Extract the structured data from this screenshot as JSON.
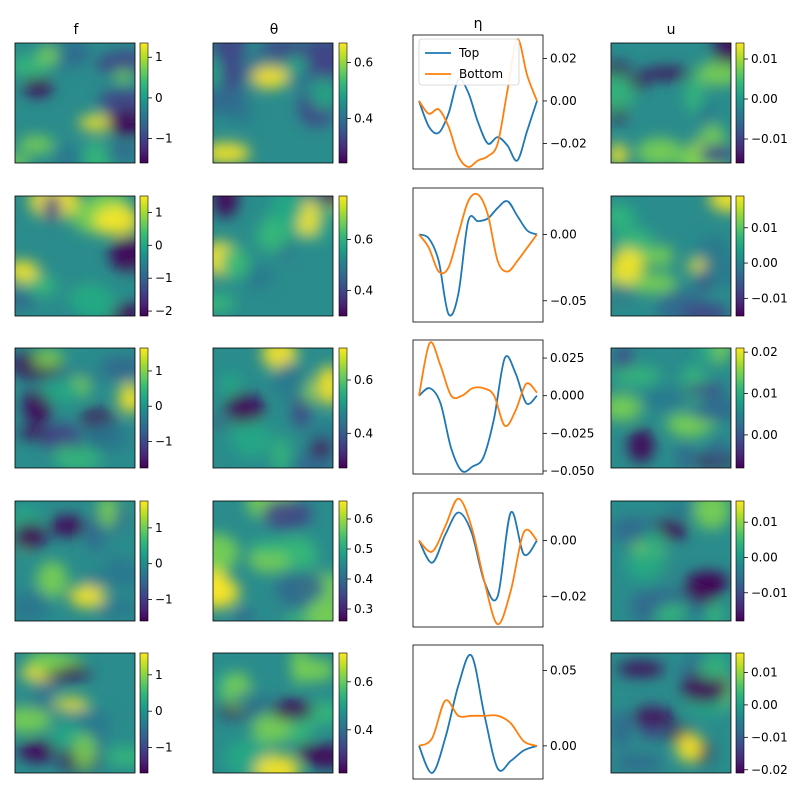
{
  "chart_data": {
    "type": "figure-grid",
    "column_titles": [
      "f",
      "θ",
      "η",
      "u"
    ],
    "legend": [
      "Top",
      "Bottom"
    ],
    "series_colors": {
      "Top": "#1f77b4",
      "Bottom": "#ff7f0e"
    },
    "colormap": "viridis",
    "rows": [
      {
        "f": {
          "clim": [
            -1.6,
            1.35
          ],
          "ticks": [
            1,
            0,
            -1
          ],
          "tick_labels": [
            "1",
            "0",
            "−1"
          ]
        },
        "theta": {
          "clim": [
            0.24,
            0.67
          ],
          "ticks": [
            0.6,
            0.4
          ],
          "tick_labels": [
            "0.6",
            "0.4"
          ]
        },
        "eta": {
          "ylim": [
            -0.032,
            0.031
          ],
          "ticks": [
            0.02,
            0.0,
            -0.02
          ],
          "tick_labels": [
            "0.02",
            "0.00",
            "−0.02"
          ],
          "series": [
            {
              "name": "Top",
              "values": [
                0.0,
                -0.012,
                -0.015,
                -0.006,
                0.01,
                0.004,
                -0.01,
                -0.02,
                -0.017,
                -0.021,
                -0.028,
                -0.014,
                0.0
              ]
            },
            {
              "name": "Bottom",
              "values": [
                0.0,
                -0.006,
                -0.004,
                -0.012,
                -0.026,
                -0.031,
                -0.028,
                -0.026,
                -0.02,
                0.005,
                0.029,
                0.012,
                0.0
              ]
            }
          ]
        },
        "u": {
          "clim": [
            -0.016,
            0.014
          ],
          "ticks": [
            0.01,
            0.0,
            -0.01
          ],
          "tick_labels": [
            "0.01",
            "0.00",
            "−0.01"
          ]
        }
      },
      {
        "f": {
          "clim": [
            -2.15,
            1.5
          ],
          "ticks": [
            1,
            0,
            -1,
            -2
          ],
          "tick_labels": [
            "1",
            "0",
            "−1",
            "−2"
          ]
        },
        "theta": {
          "clim": [
            0.3,
            0.77
          ],
          "ticks": [
            0.6,
            0.4
          ],
          "tick_labels": [
            "0.6",
            "0.4"
          ]
        },
        "eta": {
          "ylim": [
            -0.066,
            0.035
          ],
          "ticks": [
            0.0,
            -0.05
          ],
          "tick_labels": [
            "0.00",
            "−0.05"
          ],
          "series": [
            {
              "name": "Top",
              "values": [
                0.0,
                -0.003,
                -0.02,
                -0.06,
                -0.045,
                0.01,
                0.01,
                0.012,
                0.02,
                0.025,
                0.014,
                0.003,
                0.0
              ]
            },
            {
              "name": "Bottom",
              "values": [
                0.0,
                -0.01,
                -0.028,
                -0.025,
                0.0,
                0.025,
                0.03,
                0.015,
                -0.02,
                -0.028,
                -0.02,
                -0.01,
                0.0
              ]
            }
          ]
        },
        "u": {
          "clim": [
            -0.015,
            0.019
          ],
          "ticks": [
            0.01,
            0.0,
            -0.01
          ],
          "tick_labels": [
            "0.01",
            "0.00",
            "−0.01"
          ]
        }
      },
      {
        "f": {
          "clim": [
            -1.75,
            1.65
          ],
          "ticks": [
            1,
            0,
            -1
          ],
          "tick_labels": [
            "1",
            "0",
            "−1"
          ]
        },
        "theta": {
          "clim": [
            0.27,
            0.72
          ],
          "ticks": [
            0.6,
            0.4
          ],
          "tick_labels": [
            "0.6",
            "0.4"
          ]
        },
        "eta": {
          "ylim": [
            -0.052,
            0.037
          ],
          "ticks": [
            0.025,
            0.0,
            -0.025,
            -0.05
          ],
          "tick_labels": [
            "0.025",
            "0.000",
            "−0.025",
            "−0.050"
          ],
          "series": [
            {
              "name": "Top",
              "values": [
                0.0,
                0.005,
                -0.005,
                -0.035,
                -0.05,
                -0.047,
                -0.041,
                -0.015,
                0.025,
                0.015,
                -0.005,
                0.0
              ]
            },
            {
              "name": "Bottom",
              "values": [
                0.0,
                0.035,
                0.02,
                0.0,
                0.0,
                0.005,
                0.005,
                0.0,
                -0.02,
                -0.01,
                0.008,
                0.002
              ]
            }
          ]
        },
        "u": {
          "clim": [
            -0.008,
            0.021
          ],
          "ticks": [
            0.02,
            0.01,
            0.0
          ],
          "tick_labels": [
            "0.02",
            "0.01",
            "0.00"
          ]
        }
      },
      {
        "f": {
          "clim": [
            -1.6,
            1.75
          ],
          "ticks": [
            1,
            0,
            -1
          ],
          "tick_labels": [
            "1",
            "0",
            "−1"
          ]
        },
        "theta": {
          "clim": [
            0.26,
            0.66
          ],
          "ticks": [
            0.6,
            0.5,
            0.4,
            0.3
          ],
          "tick_labels": [
            "0.6",
            "0.5",
            "0.4",
            "0.3"
          ]
        },
        "eta": {
          "ylim": [
            -0.031,
            0.017
          ],
          "ticks": [
            0.0,
            -0.02
          ],
          "tick_labels": [
            "0.00",
            "−0.02"
          ],
          "series": [
            {
              "name": "Top",
              "values": [
                0.0,
                -0.008,
                0.002,
                0.01,
                0.003,
                -0.015,
                -0.02,
                0.01,
                -0.005,
                0.0
              ]
            },
            {
              "name": "Bottom",
              "values": [
                0.0,
                -0.004,
                0.005,
                0.015,
                0.005,
                -0.015,
                -0.03,
                -0.018,
                0.003,
                0.0
              ]
            }
          ]
        },
        "u": {
          "clim": [
            -0.018,
            0.016
          ],
          "ticks": [
            0.01,
            0.0,
            -0.01
          ],
          "tick_labels": [
            "0.01",
            "0.00",
            "−0.01"
          ]
        }
      },
      {
        "f": {
          "clim": [
            -1.7,
            1.6
          ],
          "ticks": [
            1,
            0,
            -1
          ],
          "tick_labels": [
            "1",
            "0",
            "−1"
          ]
        },
        "theta": {
          "clim": [
            0.22,
            0.72
          ],
          "ticks": [
            0.6,
            0.4
          ],
          "tick_labels": [
            "0.6",
            "0.4"
          ]
        },
        "eta": {
          "ylim": [
            -0.022,
            0.067
          ],
          "ticks": [
            0.05,
            0.0
          ],
          "tick_labels": [
            "0.05",
            "0.00"
          ],
          "series": [
            {
              "name": "Top",
              "values": [
                0.0,
                -0.018,
                0.005,
                0.04,
                0.06,
                0.02,
                -0.015,
                -0.01,
                -0.003,
                0.0
              ]
            },
            {
              "name": "Bottom",
              "values": [
                0.0,
                0.005,
                0.03,
                0.02,
                0.02,
                0.02,
                0.02,
                0.015,
                0.003,
                0.0
              ]
            }
          ]
        },
        "u": {
          "clim": [
            -0.021,
            0.016
          ],
          "ticks": [
            0.01,
            0.0,
            -0.01,
            -0.02
          ],
          "tick_labels": [
            "0.01",
            "0.00",
            "−0.01",
            "−0.02"
          ]
        }
      }
    ]
  }
}
